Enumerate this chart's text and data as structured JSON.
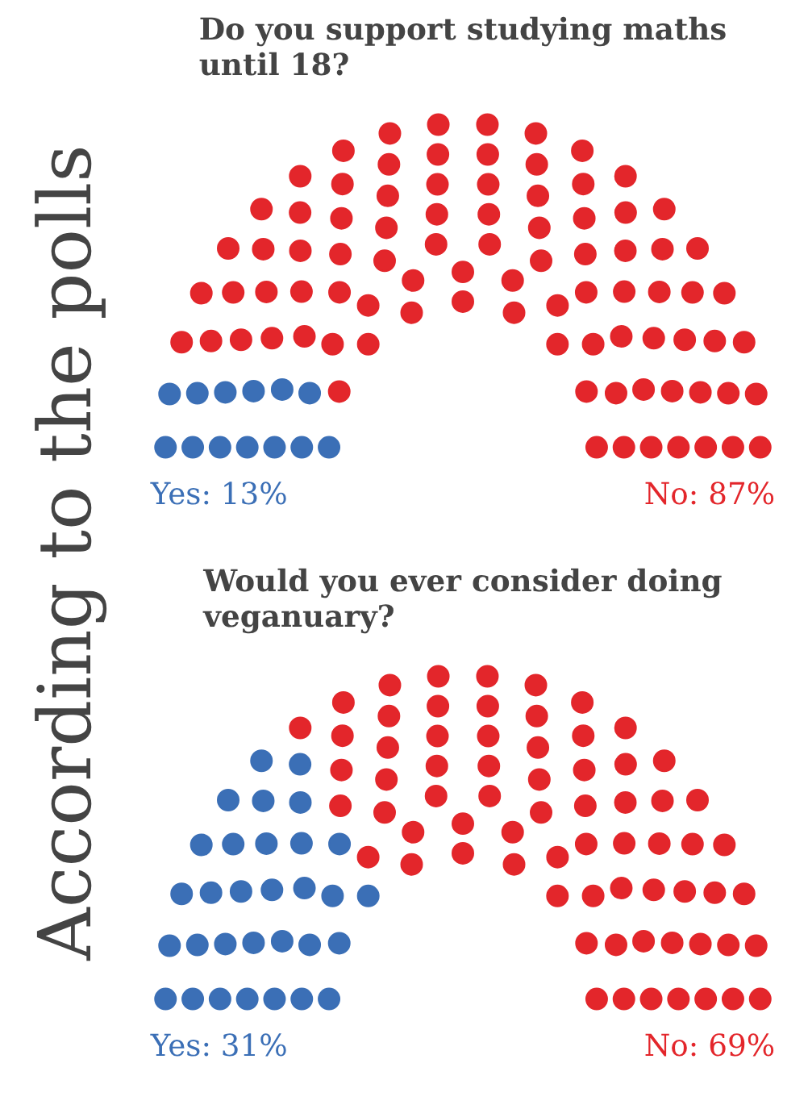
{
  "chart_data": [
    {
      "type": "other",
      "title": "Do you support studying maths until 18?",
      "values": [
        13,
        87
      ],
      "colors": [
        "#3b6fb6",
        "#e3262b"
      ],
      "value_labels": [
        "Yes: 13%",
        "No: 87%"
      ],
      "annotations": [
        "According to the polls"
      ]
    },
    {
      "type": "other",
      "title": "Would you ever consider doing veganuary?",
      "values": [
        31,
        69
      ],
      "colors": [
        "#3b6fb6",
        "#e3262b"
      ],
      "value_labels": [
        "Yes: 31%",
        "No: 69%"
      ]
    }
  ]
}
